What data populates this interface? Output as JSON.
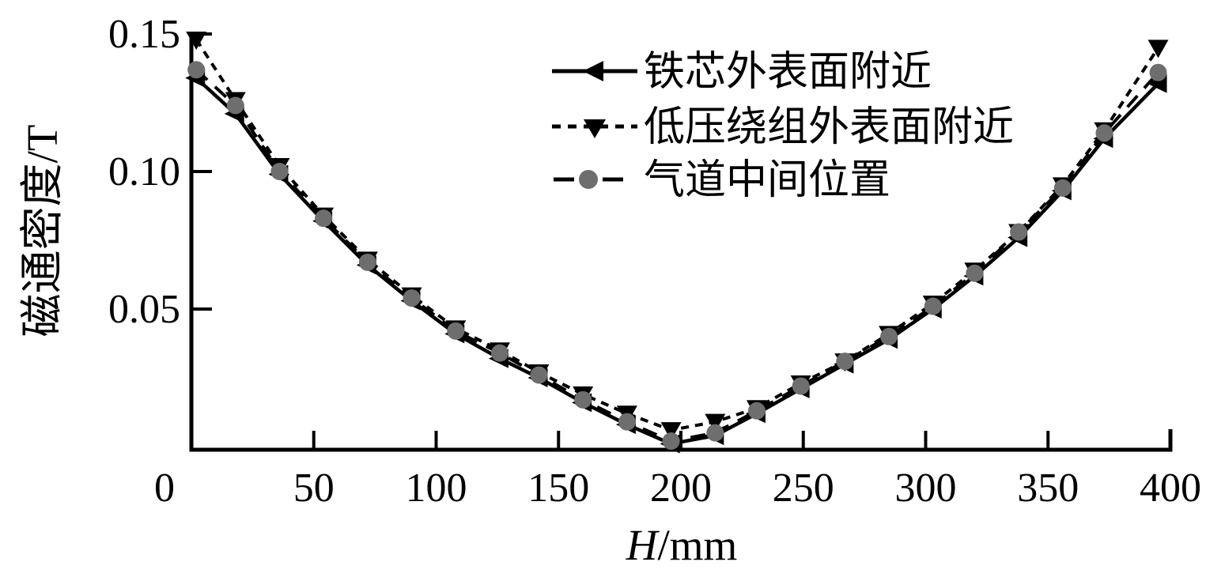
{
  "chart_data": {
    "type": "line",
    "title": "",
    "ylabel": "磁通密度/T",
    "xlabel": "H/mm",
    "xlabel_variable": "H",
    "xlabel_unit": "/mm",
    "xlim": [
      0,
      400
    ],
    "ylim": [
      0,
      0.155
    ],
    "grid": false,
    "legend_position": "upper-center, no frame, inside plot",
    "x_ticks": [
      {
        "value": 0,
        "label": "0"
      },
      {
        "value": 50,
        "label": "50"
      },
      {
        "value": 100,
        "label": "100"
      },
      {
        "value": 150,
        "label": "150"
      },
      {
        "value": 200,
        "label": "200"
      },
      {
        "value": 250,
        "label": "250"
      },
      {
        "value": 300,
        "label": "300"
      },
      {
        "value": 350,
        "label": "350"
      },
      {
        "value": 400,
        "label": "400"
      }
    ],
    "y_ticks": [
      {
        "value": 0.05,
        "label": "0.05"
      },
      {
        "value": 0.1,
        "label": "0.10"
      },
      {
        "value": 0.15,
        "label": "0.15"
      }
    ],
    "x": [
      2,
      18,
      36,
      54,
      72,
      90,
      108,
      126,
      142,
      160,
      178,
      196,
      214,
      231,
      249,
      267,
      285,
      303,
      320,
      338,
      356,
      373,
      395
    ],
    "series": [
      {
        "name": "铁芯外表面附近",
        "marker": "triangle-left",
        "line_style": "solid",
        "color": "#000000",
        "marker_color": "#000000",
        "values": [
          0.134,
          0.121,
          0.099,
          0.082,
          0.066,
          0.053,
          0.041,
          0.032,
          0.025,
          0.016,
          0.008,
          0.001,
          0.004,
          0.012,
          0.021,
          0.03,
          0.039,
          0.05,
          0.062,
          0.076,
          0.093,
          0.112,
          0.132
        ]
      },
      {
        "name": "低压绕组外表面附近",
        "marker": "triangle-down",
        "line_style": "dotted",
        "color": "#000000",
        "marker_color": "#000000",
        "values": [
          0.148,
          0.126,
          0.102,
          0.084,
          0.068,
          0.055,
          0.043,
          0.035,
          0.027,
          0.019,
          0.012,
          0.006,
          0.009,
          0.014,
          0.023,
          0.031,
          0.041,
          0.052,
          0.064,
          0.078,
          0.095,
          0.115,
          0.145
        ]
      },
      {
        "name": "气道中间位置",
        "marker": "circle",
        "line_style": "dashed",
        "color": "#000000",
        "marker_color": "#6e6e6e",
        "values": [
          0.137,
          0.124,
          0.1,
          0.083,
          0.067,
          0.054,
          0.042,
          0.034,
          0.026,
          0.017,
          0.009,
          0.002,
          0.005,
          0.013,
          0.022,
          0.031,
          0.04,
          0.051,
          0.063,
          0.078,
          0.094,
          0.114,
          0.136
        ]
      }
    ]
  },
  "colors": {
    "axis": "#000000",
    "background": "#ffffff",
    "circle_marker": "#6e6e6e"
  }
}
